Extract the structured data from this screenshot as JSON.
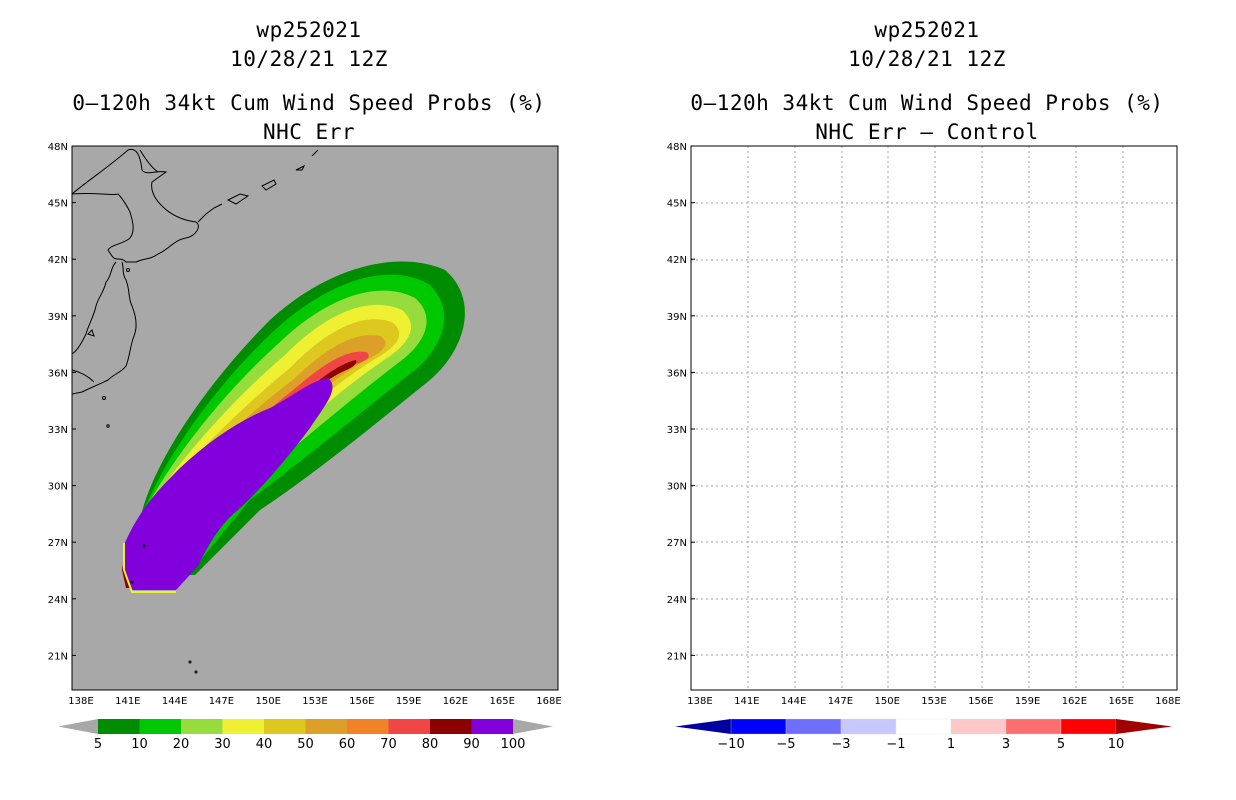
{
  "left_panel": {
    "title_lines": [
      "wp252021",
      "10/28/21 12Z",
      "0–120h 34kt Cum Wind Speed Probs (%)",
      "NHC Err"
    ],
    "colorbar_labels": [
      "5",
      "10",
      "20",
      "30",
      "40",
      "50",
      "60",
      "70",
      "80",
      "90",
      "100"
    ],
    "colorbar_colors": [
      "#008c00",
      "#00c800",
      "#00e600",
      "#96dc3c",
      "#f0f032",
      "#dcc81e",
      "#dca028",
      "#f08228",
      "#f04646",
      "#8c0000",
      "#8200dc"
    ],
    "map_background": "#a8a8a8"
  },
  "right_panel": {
    "title_lines": [
      "wp252021",
      "10/28/21 12Z",
      "0–120h 34kt Cum Wind Speed Probs (%)",
      "NHC Err – Control"
    ],
    "colorbar_labels": [
      "−10",
      "−5",
      "−3",
      "−1",
      "1",
      "3",
      "5",
      "10"
    ],
    "colorbar_colors": [
      "#0000a0",
      "#0000ff",
      "#6e6eff",
      "#c8c8ff",
      "#ffffff",
      "#ffc8c8",
      "#ff6e6e",
      "#ff0000",
      "#a00000"
    ],
    "map_background": "#ffffff"
  },
  "axes": {
    "lat_labels": [
      "48N",
      "45N",
      "42N",
      "39N",
      "36N",
      "33N",
      "30N",
      "27N",
      "24N",
      "21N"
    ],
    "lon_labels": [
      "138E",
      "141E",
      "144E",
      "147E",
      "150E",
      "153E",
      "156E",
      "159E",
      "162E",
      "165E",
      "168E"
    ]
  },
  "chart_data": {
    "type": "map",
    "storm_id": "wp252021",
    "valid_time": "10/28/21 12Z",
    "product": "0-120h 34kt Cum Wind Speed Probs (%)",
    "lat_range": [
      19,
      48
    ],
    "lon_range": [
      138,
      168
    ],
    "left_contour_levels_pct": [
      5,
      10,
      20,
      30,
      40,
      50,
      60,
      70,
      80,
      90,
      100
    ],
    "right_contour_levels_pct": [
      -10,
      -5,
      -3,
      -1,
      1,
      3,
      5,
      10
    ]
  }
}
